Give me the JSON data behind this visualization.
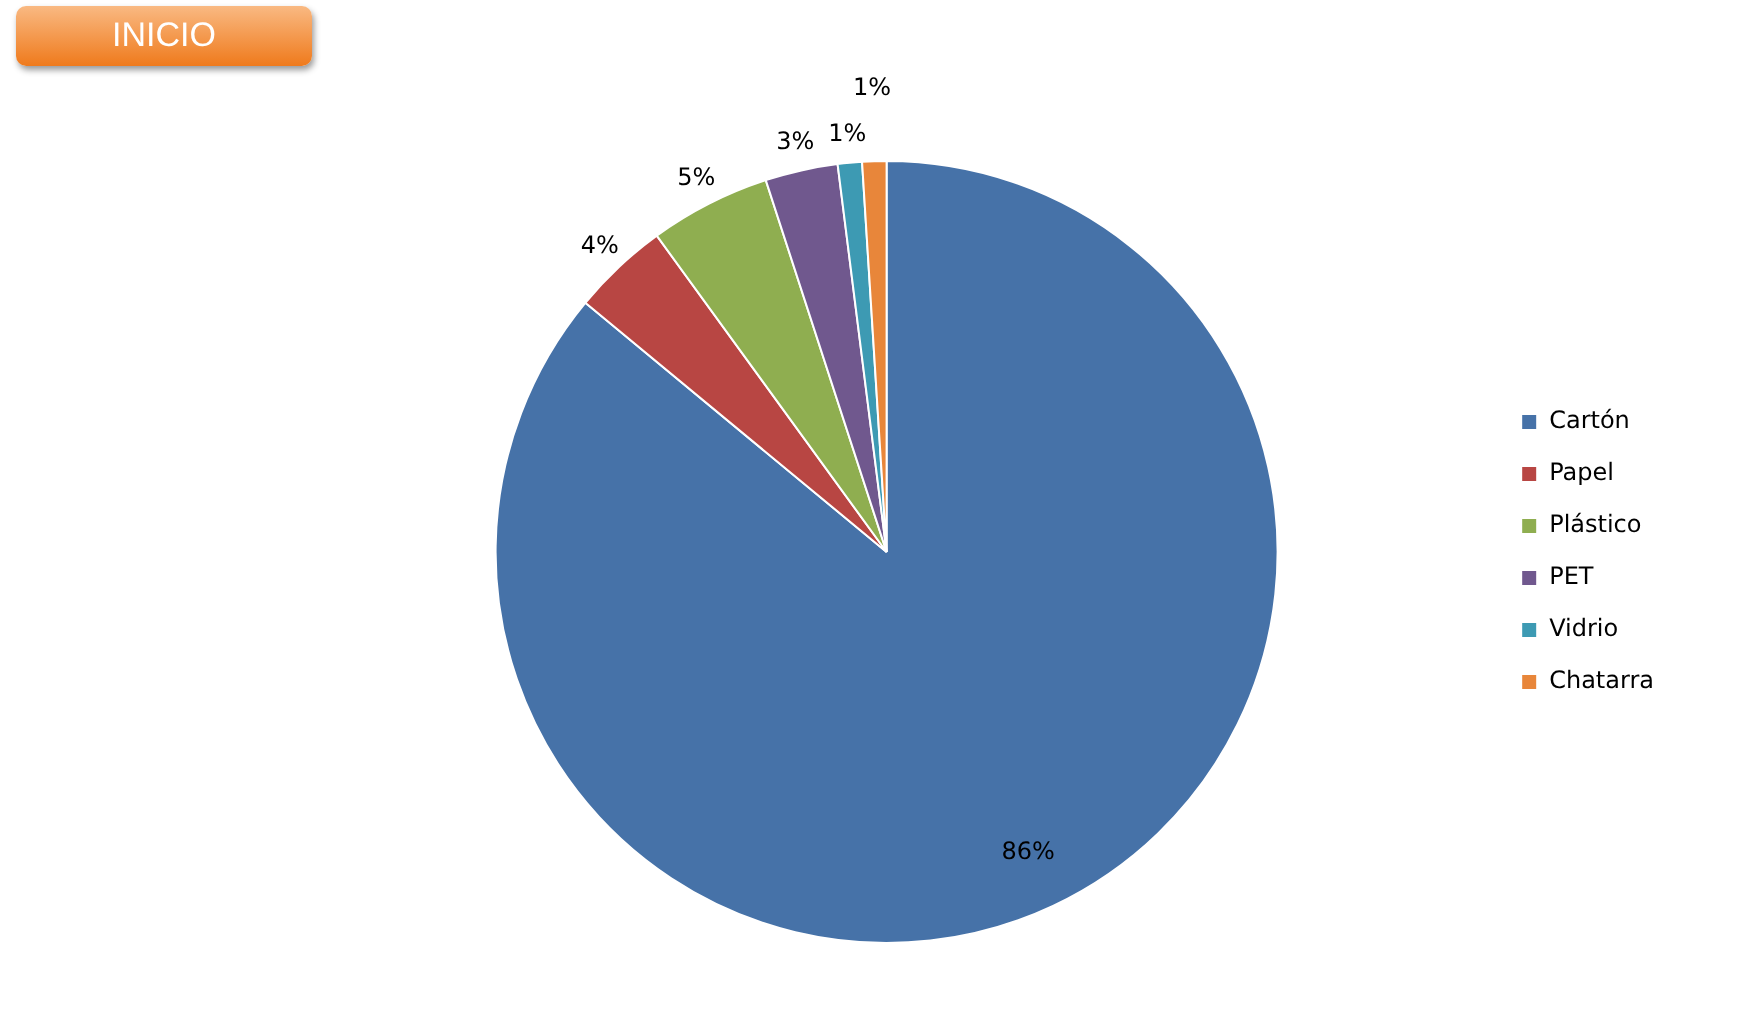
{
  "chart_data": {
    "type": "pie",
    "categories": [
      "Cartón",
      "Papel",
      "Plástico",
      "PET",
      "Vidrio",
      "Chatarra"
    ],
    "values": [
      86,
      4,
      5,
      3,
      1,
      1
    ],
    "colors": [
      "#4672a8",
      "#b84643",
      "#8fae50",
      "#70588e",
      "#3d9ab3",
      "#e8863a"
    ],
    "value_labels": [
      "86%",
      "4%",
      "5%",
      "3%",
      "1%",
      "1%"
    ],
    "legend": "right",
    "annotations": [
      "INICIO"
    ]
  }
}
